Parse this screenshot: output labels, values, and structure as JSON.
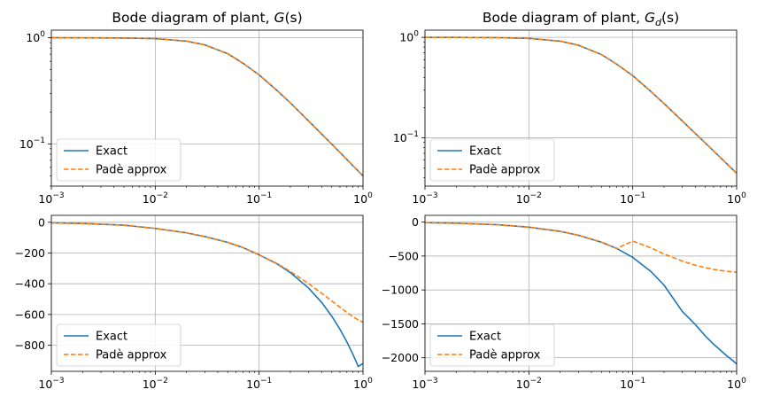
{
  "chart_data": [
    {
      "type": "line",
      "title": "Bode diagram of plant, ",
      "title_symbol": "G",
      "title_sub": "",
      "title_arg": "(s)",
      "xscale": "log",
      "yscale": "log",
      "xlim": [
        0.001,
        1
      ],
      "ylim": [
        0.04,
        1.18
      ],
      "xticks": [
        {
          "base": "10",
          "exp": "−3"
        },
        {
          "base": "10",
          "exp": "−2"
        },
        {
          "base": "10",
          "exp": "−1"
        },
        {
          "base": "10",
          "exp": "0"
        }
      ],
      "xtick_values": [
        0.001,
        0.01,
        0.1,
        1
      ],
      "yticks": [
        {
          "base": "10",
          "exp": "−1",
          "v": 0.1
        },
        {
          "base": "10",
          "exp": "0",
          "v": 1
        }
      ],
      "grid": true,
      "legend_position": "lower-left",
      "series": [
        {
          "name": "Exact",
          "color": "#1f77b4",
          "dash": "solid",
          "x": [
            0.001,
            0.002,
            0.005,
            0.01,
            0.02,
            0.03,
            0.05,
            0.07,
            0.1,
            0.15,
            0.2,
            0.3,
            0.5,
            0.7,
            1.0
          ],
          "y": [
            1.0,
            0.999,
            0.994,
            0.981,
            0.929,
            0.857,
            0.707,
            0.575,
            0.447,
            0.316,
            0.243,
            0.164,
            0.0995,
            0.0712,
            0.0499
          ]
        },
        {
          "name": "Padè approx",
          "color": "#ff7f0e",
          "dash": "dashed",
          "x": [
            0.001,
            0.002,
            0.005,
            0.01,
            0.02,
            0.03,
            0.05,
            0.07,
            0.1,
            0.15,
            0.2,
            0.3,
            0.5,
            0.7,
            1.0
          ],
          "y": [
            1.0,
            0.999,
            0.994,
            0.981,
            0.929,
            0.857,
            0.707,
            0.575,
            0.447,
            0.316,
            0.243,
            0.164,
            0.0995,
            0.0712,
            0.0499
          ]
        }
      ]
    },
    {
      "type": "line",
      "title": "Bode diagram of plant, ",
      "title_symbol": "G",
      "title_sub": "d",
      "title_arg": "(s)",
      "xscale": "log",
      "yscale": "log",
      "xlim": [
        0.001,
        1
      ],
      "ylim": [
        0.033,
        1.18
      ],
      "xticks": [
        {
          "base": "10",
          "exp": "−3"
        },
        {
          "base": "10",
          "exp": "−2"
        },
        {
          "base": "10",
          "exp": "−1"
        },
        {
          "base": "10",
          "exp": "0"
        }
      ],
      "xtick_values": [
        0.001,
        0.01,
        0.1,
        1
      ],
      "yticks": [
        {
          "base": "10",
          "exp": "−1",
          "v": 0.1
        },
        {
          "base": "10",
          "exp": "0",
          "v": 1
        }
      ],
      "grid": true,
      "legend_position": "lower-left",
      "series": [
        {
          "name": "Exact",
          "color": "#1f77b4",
          "dash": "solid",
          "x": [
            0.001,
            0.002,
            0.005,
            0.01,
            0.02,
            0.03,
            0.05,
            0.07,
            0.1,
            0.15,
            0.2,
            0.3,
            0.5,
            0.7,
            1.0
          ],
          "y": [
            1.0,
            0.999,
            0.993,
            0.977,
            0.916,
            0.836,
            0.674,
            0.541,
            0.415,
            0.288,
            0.219,
            0.147,
            0.0885,
            0.0633,
            0.0443
          ]
        },
        {
          "name": "Padè approx",
          "color": "#ff7f0e",
          "dash": "dashed",
          "x": [
            0.001,
            0.002,
            0.005,
            0.01,
            0.02,
            0.03,
            0.05,
            0.07,
            0.1,
            0.15,
            0.2,
            0.3,
            0.5,
            0.7,
            1.0
          ],
          "y": [
            1.0,
            0.999,
            0.993,
            0.977,
            0.916,
            0.836,
            0.674,
            0.541,
            0.415,
            0.288,
            0.219,
            0.147,
            0.0885,
            0.0633,
            0.0443
          ]
        }
      ]
    },
    {
      "type": "line",
      "title": "",
      "xscale": "log",
      "yscale": "linear",
      "xlim": [
        0.001,
        1
      ],
      "ylim": [
        -970,
        45
      ],
      "xticks": [
        {
          "base": "10",
          "exp": "−3"
        },
        {
          "base": "10",
          "exp": "−2"
        },
        {
          "base": "10",
          "exp": "−1"
        },
        {
          "base": "10",
          "exp": "0"
        }
      ],
      "xtick_values": [
        0.001,
        0.01,
        0.1,
        1
      ],
      "yticks": [
        {
          "label": "0",
          "v": 0
        },
        {
          "label": "−200",
          "v": -200
        },
        {
          "label": "−400",
          "v": -400
        },
        {
          "label": "−600",
          "v": -600
        },
        {
          "label": "−800",
          "v": -800
        }
      ],
      "grid": true,
      "legend_position": "lower-left",
      "series": [
        {
          "name": "Exact",
          "color": "#1f77b4",
          "dash": "solid",
          "x": [
            0.001,
            0.002,
            0.005,
            0.01,
            0.02,
            0.03,
            0.05,
            0.07,
            0.1,
            0.15,
            0.2,
            0.3,
            0.4,
            0.5,
            0.6,
            0.7,
            0.8,
            0.9,
            1.0
          ],
          "y": [
            -4,
            -8,
            -19,
            -40,
            -69,
            -93,
            -131,
            -165,
            -212,
            -272,
            -328,
            -429,
            -522,
            -611,
            -696,
            -779,
            -860,
            -938,
            -919
          ]
        },
        {
          "name": "Padè approx",
          "color": "#ff7f0e",
          "dash": "dashed",
          "x": [
            0.001,
            0.002,
            0.005,
            0.01,
            0.02,
            0.03,
            0.05,
            0.07,
            0.1,
            0.15,
            0.2,
            0.3,
            0.4,
            0.5,
            0.6,
            0.7,
            0.8,
            0.9,
            1.0
          ],
          "y": [
            -4,
            -8,
            -19,
            -40,
            -69,
            -93,
            -131,
            -165,
            -212,
            -270,
            -320,
            -400,
            -462,
            -512,
            -553,
            -587,
            -614,
            -636,
            -650
          ]
        }
      ]
    },
    {
      "type": "line",
      "title": "",
      "xscale": "log",
      "yscale": "linear",
      "xlim": [
        0.001,
        1
      ],
      "ylim": [
        -2200,
        100
      ],
      "xticks": [
        {
          "base": "10",
          "exp": "−3"
        },
        {
          "base": "10",
          "exp": "−2"
        },
        {
          "base": "10",
          "exp": "−1"
        },
        {
          "base": "10",
          "exp": "0"
        }
      ],
      "xtick_values": [
        0.001,
        0.01,
        0.1,
        1
      ],
      "yticks": [
        {
          "label": "0",
          "v": 0
        },
        {
          "label": "−500",
          "v": -500
        },
        {
          "label": "−1000",
          "v": -1000
        },
        {
          "label": "−1500",
          "v": -1500
        },
        {
          "label": "−2000",
          "v": -2000
        }
      ],
      "grid": true,
      "legend_position": "lower-left",
      "series": [
        {
          "name": "Exact",
          "color": "#1f77b4",
          "dash": "solid",
          "x": [
            0.001,
            0.002,
            0.005,
            0.01,
            0.02,
            0.03,
            0.05,
            0.07,
            0.1,
            0.15,
            0.2,
            0.3,
            0.4,
            0.5,
            0.6,
            0.7,
            0.8,
            0.9,
            1.0
          ],
          "y": [
            -8,
            -16,
            -38,
            -74,
            -136,
            -194,
            -296,
            -388,
            -520,
            -729,
            -929,
            -1317,
            -1510,
            -1680,
            -1800,
            -1890,
            -1970,
            -2030,
            -2090
          ]
        },
        {
          "name": "Padè approx",
          "color": "#ff7f0e",
          "dash": "dashed",
          "x": [
            0.001,
            0.002,
            0.005,
            0.01,
            0.02,
            0.03,
            0.05,
            0.07,
            0.1,
            0.15,
            0.2,
            0.3,
            0.4,
            0.5,
            0.6,
            0.7,
            0.8,
            0.9,
            1.0
          ],
          "y": [
            -8,
            -16,
            -38,
            -74,
            -136,
            -194,
            -296,
            -388,
            -280,
            -380,
            -470,
            -575,
            -635,
            -672,
            -697,
            -713,
            -724,
            -732,
            -738
          ]
        }
      ]
    }
  ]
}
